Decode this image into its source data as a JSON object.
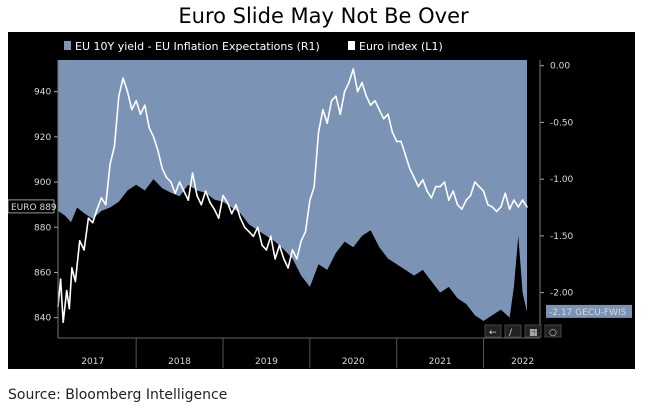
{
  "title": "Euro Slide May Not Be Over",
  "source": "Source: Bloomberg Intelligence",
  "colors": {
    "area": "#7b93b5",
    "line": "#ffffff",
    "background": "#000000",
    "tag_fill": "#7b93b5"
  },
  "chart_data": {
    "type": "line",
    "legend": [
      {
        "name": "EU 10Y yield - EU Inflation Expectations (R1)",
        "style": "area",
        "axis": "right"
      },
      {
        "name": "Euro index (L1)",
        "style": "line",
        "axis": "left"
      }
    ],
    "left_axis": {
      "ylim": [
        831,
        954
      ],
      "ticks": [
        840,
        860,
        880,
        900,
        920,
        940
      ],
      "tag": "EURO 889"
    },
    "right_axis": {
      "ylim": [
        -2.4,
        0.05
      ],
      "ticks": [
        "0.00",
        "-0.50",
        "-1.00",
        "-1.50",
        "-2.00"
      ],
      "tag": "-2.17 GECU-FWIS"
    },
    "x_axis": {
      "range": [
        2016.6,
        2022.15
      ],
      "labels": [
        "2017",
        "2018",
        "2019",
        "2020",
        "2021",
        "2022"
      ],
      "label_pos": [
        2017.0,
        2018.0,
        2019.0,
        2020.0,
        2021.0,
        2021.95
      ],
      "dividers": [
        2017.5,
        2018.5,
        2019.5,
        2020.5,
        2021.5
      ]
    },
    "series": [
      {
        "name": "EU 10Y yield - EU Inflation Expectations (R1)",
        "x": [
          2016.6,
          2016.68,
          2016.75,
          2016.82,
          2016.9,
          2017.0,
          2017.1,
          2017.2,
          2017.3,
          2017.4,
          2017.5,
          2017.6,
          2017.7,
          2017.8,
          2017.9,
          2018.0,
          2018.1,
          2018.2,
          2018.3,
          2018.4,
          2018.5,
          2018.6,
          2018.7,
          2018.8,
          2018.9,
          2019.0,
          2019.1,
          2019.2,
          2019.3,
          2019.4,
          2019.5,
          2019.6,
          2019.7,
          2019.8,
          2019.9,
          2020.0,
          2020.1,
          2020.2,
          2020.3,
          2020.4,
          2020.5,
          2020.6,
          2020.7,
          2020.8,
          2020.9,
          2021.0,
          2021.1,
          2021.2,
          2021.3,
          2021.4,
          2021.5,
          2021.6,
          2021.7,
          2021.8,
          2021.85,
          2021.9,
          2021.95,
          2022.0
        ],
        "values": [
          -1.28,
          -1.32,
          -1.38,
          -1.25,
          -1.3,
          -1.35,
          -1.28,
          -1.25,
          -1.2,
          -1.1,
          -1.05,
          -1.1,
          -1.0,
          -1.08,
          -1.12,
          -1.15,
          -1.05,
          -1.1,
          -1.12,
          -1.18,
          -1.2,
          -1.25,
          -1.3,
          -1.4,
          -1.45,
          -1.5,
          -1.55,
          -1.62,
          -1.7,
          -1.85,
          -1.95,
          -1.75,
          -1.8,
          -1.65,
          -1.55,
          -1.6,
          -1.5,
          -1.45,
          -1.6,
          -1.7,
          -1.75,
          -1.8,
          -1.85,
          -1.8,
          -1.9,
          -2.0,
          -1.95,
          -2.05,
          -2.1,
          -2.2,
          -2.25,
          -2.2,
          -2.15,
          -2.22,
          -1.95,
          -1.5,
          -2.0,
          -2.17
        ]
      },
      {
        "name": "Euro index (L1)",
        "x": [
          2016.6,
          2016.63,
          2016.66,
          2016.7,
          2016.73,
          2016.76,
          2016.8,
          2016.85,
          2016.9,
          2016.95,
          2017.0,
          2017.05,
          2017.1,
          2017.15,
          2017.2,
          2017.25,
          2017.3,
          2017.35,
          2017.4,
          2017.45,
          2017.5,
          2017.55,
          2017.6,
          2017.65,
          2017.7,
          2017.75,
          2017.8,
          2017.85,
          2017.9,
          2017.95,
          2018.0,
          2018.05,
          2018.1,
          2018.15,
          2018.2,
          2018.25,
          2018.3,
          2018.35,
          2018.4,
          2018.45,
          2018.5,
          2018.55,
          2018.6,
          2018.65,
          2018.7,
          2018.75,
          2018.8,
          2018.85,
          2018.9,
          2018.95,
          2019.0,
          2019.05,
          2019.1,
          2019.15,
          2019.2,
          2019.25,
          2019.3,
          2019.35,
          2019.4,
          2019.45,
          2019.5,
          2019.55,
          2019.6,
          2019.65,
          2019.7,
          2019.75,
          2019.8,
          2019.85,
          2019.9,
          2019.95,
          2020.0,
          2020.05,
          2020.1,
          2020.15,
          2020.2,
          2020.25,
          2020.3,
          2020.35,
          2020.4,
          2020.45,
          2020.5,
          2020.55,
          2020.6,
          2020.65,
          2020.7,
          2020.75,
          2020.8,
          2020.85,
          2020.9,
          2020.95,
          2021.0,
          2021.05,
          2021.1,
          2021.15,
          2021.2,
          2021.25,
          2021.3,
          2021.35,
          2021.4,
          2021.45,
          2021.5,
          2021.55,
          2021.6,
          2021.65,
          2021.7,
          2021.75,
          2021.8,
          2021.85,
          2021.9,
          2021.95,
          2022.0
        ],
        "values": [
          845,
          857,
          838,
          852,
          844,
          862,
          856,
          874,
          870,
          884,
          882,
          888,
          893,
          890,
          908,
          916,
          938,
          946,
          940,
          932,
          936,
          930,
          934,
          924,
          920,
          914,
          906,
          902,
          900,
          895,
          900,
          896,
          892,
          904,
          894,
          890,
          896,
          891,
          888,
          884,
          894,
          891,
          886,
          890,
          884,
          880,
          878,
          876,
          880,
          872,
          870,
          876,
          866,
          872,
          866,
          862,
          870,
          866,
          874,
          878,
          892,
          898,
          922,
          932,
          926,
          936,
          938,
          930,
          940,
          944,
          950,
          940,
          944,
          938,
          934,
          936,
          932,
          928,
          930,
          922,
          918,
          918,
          912,
          906,
          902,
          898,
          901,
          896,
          893,
          898,
          898,
          900,
          892,
          896,
          890,
          888,
          892,
          894,
          900,
          898,
          896,
          890,
          889,
          887,
          889,
          895,
          888,
          892,
          889,
          892,
          889
        ]
      }
    ]
  }
}
